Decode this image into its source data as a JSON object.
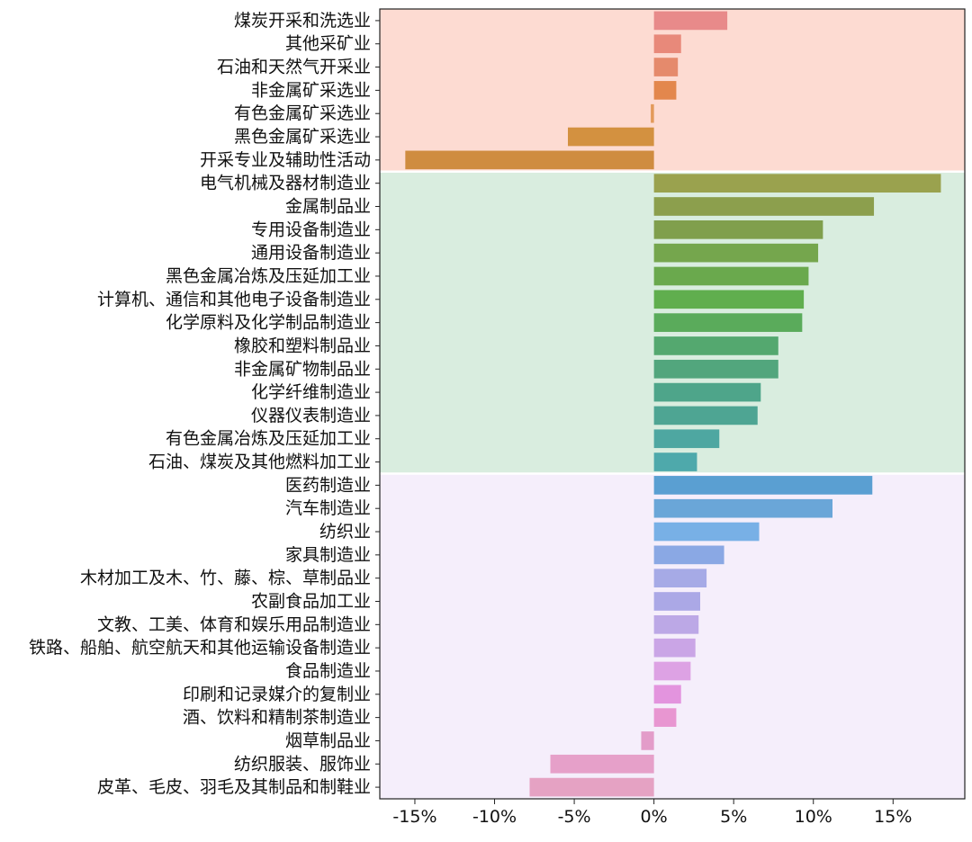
{
  "chart_data": {
    "type": "bar",
    "orientation": "horizontal",
    "xlim": [
      -17.2,
      19.5
    ],
    "xticks": [
      -15,
      -10,
      -5,
      0,
      5,
      10,
      15
    ],
    "xtick_labels": [
      "-15%",
      "-10%",
      "-5%",
      "0%",
      "5%",
      "10%",
      "15%"
    ],
    "grid": false,
    "categories": [
      "煤炭开采和洗选业",
      "其他采矿业",
      "石油和天然气开采业",
      "非金属矿采选业",
      "有色金属矿采选业",
      "黑色金属矿采选业",
      "开采专业及辅助性活动",
      "电气机械及器材制造业",
      "金属制品业",
      "专用设备制造业",
      "通用设备制造业",
      "黑色金属冶炼及压延加工业",
      "计算机、通信和其他电子设备制造业",
      "化学原料及化学制品制造业",
      "橡胶和塑料制品业",
      "非金属矿物制品业",
      "化学纤维制造业",
      "仪器仪表制造业",
      "有色金属冶炼及压延加工业",
      "石油、煤炭及其他燃料加工业",
      "医药制造业",
      "汽车制造业",
      "纺织业",
      "家具制造业",
      "木材加工及木、竹、藤、棕、草制品业",
      "农副食品加工业",
      "文教、工美、体育和娱乐用品制造业",
      "铁路、船舶、航空航天和其他运输设备制造业",
      "食品制造业",
      "印刷和记录媒介的复制业",
      "酒、饮料和精制茶制造业",
      "烟草制品业",
      "纺织服装、服饰业",
      "皮革、毛皮、羽毛及其制品和制鞋业"
    ],
    "values": [
      4.6,
      1.7,
      1.5,
      1.4,
      -0.2,
      -5.4,
      -15.6,
      18.0,
      13.8,
      10.6,
      10.3,
      9.7,
      9.4,
      9.3,
      7.8,
      7.8,
      6.7,
      6.5,
      4.1,
      2.7,
      13.7,
      11.2,
      6.6,
      4.4,
      3.3,
      2.9,
      2.8,
      2.6,
      2.3,
      1.7,
      1.4,
      -0.8,
      -6.5,
      -7.8
    ],
    "bar_colors": [
      "#e88a8a",
      "#e8897a",
      "#e58a6c",
      "#e3874d",
      "#e39a5b",
      "#d39140",
      "#cf8c40",
      "#9aa24e",
      "#8c9f4d",
      "#809f4d",
      "#75a64d",
      "#6aa94d",
      "#60ae4e",
      "#5aab5b",
      "#54a86f",
      "#52a67d",
      "#4ea58a",
      "#4ea593",
      "#4ea7a1",
      "#4ea9ab",
      "#5a9fd2",
      "#6aa6d8",
      "#78b0e6",
      "#8aa8e4",
      "#a6aae6",
      "#aba8e6",
      "#bca8e6",
      "#caa5e6",
      "#dda2e4",
      "#e394de",
      "#e896d1",
      "#e39cc9",
      "#e6a0c9",
      "#e5a2c3"
    ],
    "groups": [
      {
        "start": 0,
        "end": 6,
        "color": "#fddbd2"
      },
      {
        "start": 7,
        "end": 19,
        "color": "#d9eddf"
      },
      {
        "start": 20,
        "end": 33,
        "color": "#f5eefb"
      }
    ],
    "title": "",
    "xlabel": "",
    "ylabel": ""
  }
}
